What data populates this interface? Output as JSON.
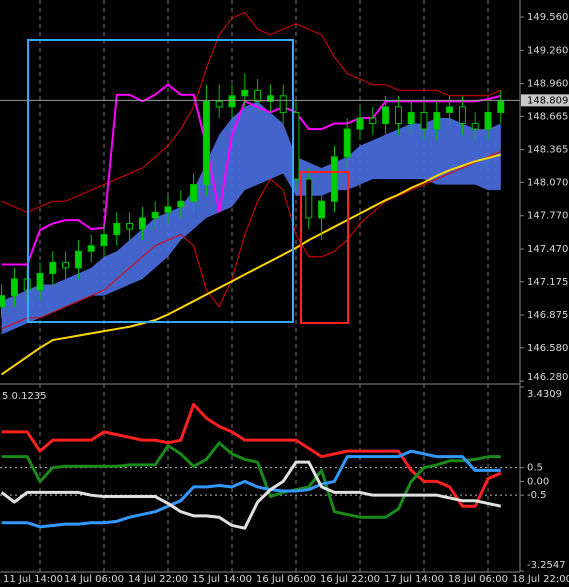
{
  "chart_data": [
    {
      "type": "candlestick",
      "ylim": [
        146.263,
        149.713
      ],
      "yticks": [
        {
          "value": 149.56,
          "label": "149.560"
        },
        {
          "value": 149.26,
          "label": "149.260"
        },
        {
          "value": 148.96,
          "label": "148.960"
        },
        148.665,
        148.365,
        {
          "value": 148.07,
          "label": "148.070"
        },
        {
          "value": 147.77,
          "label": "147.770"
        },
        {
          "value": 147.47,
          "label": "147.470"
        },
        147.175,
        146.875,
        {
          "value": 146.58,
          "label": "146.580"
        },
        {
          "value": 146.28,
          "label": "146.280"
        }
      ],
      "xlim": [
        -0.125,
        40.5
      ],
      "xticks": [
        {
          "value": -2,
          "label": "11 Jul 14:00"
        },
        {
          "value": 3,
          "label": "14 Jul 06:00"
        },
        {
          "value": 8,
          "label": "14 Jul 22:00"
        },
        {
          "value": 13,
          "label": "15 Jul 14:00"
        },
        {
          "value": 18,
          "label": "16 Jul 06:00"
        },
        {
          "value": 23,
          "label": "16 Jul 22:00"
        },
        {
          "value": 28,
          "label": "17 Jul 14:00"
        },
        {
          "value": 33,
          "label": "18 Jul 06:00"
        },
        {
          "value": 38,
          "label": "18 Jul 22:00"
        }
      ],
      "open": [
        146.95,
        147.05,
        147.2,
        147.1,
        147.25,
        147.35,
        147.3,
        147.45,
        147.5,
        147.6,
        147.7,
        147.65,
        147.75,
        147.8,
        147.85,
        147.9,
        148.05,
        148.8,
        148.75,
        148.85,
        148.9,
        148.8,
        148.85,
        148.7,
        148.1,
        147.75,
        147.9,
        148.3,
        148.55,
        148.65,
        148.6,
        148.75,
        148.6,
        148.7,
        148.55,
        148.7,
        148.75,
        148.6,
        148.55,
        148.7
      ],
      "high": [
        147.15,
        147.3,
        147.3,
        147.35,
        147.45,
        147.45,
        147.55,
        147.6,
        147.7,
        147.8,
        147.8,
        147.85,
        147.9,
        147.95,
        148.0,
        148.15,
        148.95,
        148.95,
        148.95,
        149.05,
        149.0,
        148.95,
        148.95,
        148.8,
        148.2,
        147.95,
        148.4,
        148.65,
        148.75,
        148.75,
        148.85,
        148.85,
        148.8,
        148.8,
        148.8,
        148.85,
        148.85,
        148.7,
        148.8,
        148.9
      ],
      "low": [
        146.85,
        146.95,
        147.0,
        147.0,
        147.15,
        147.2,
        147.2,
        147.35,
        147.4,
        147.5,
        147.55,
        147.55,
        147.65,
        147.7,
        147.75,
        147.8,
        147.95,
        148.65,
        148.65,
        148.75,
        148.7,
        148.7,
        148.6,
        148.0,
        147.65,
        147.55,
        147.8,
        148.2,
        148.45,
        148.5,
        148.5,
        148.5,
        148.5,
        148.45,
        148.45,
        148.6,
        148.5,
        148.45,
        148.45,
        148.6
      ],
      "close": [
        147.05,
        147.2,
        147.1,
        147.25,
        147.35,
        147.3,
        147.45,
        147.5,
        147.6,
        147.7,
        147.65,
        147.75,
        147.8,
        147.85,
        147.9,
        148.05,
        148.8,
        148.75,
        148.85,
        148.9,
        148.8,
        148.85,
        148.7,
        148.1,
        147.75,
        147.9,
        148.3,
        148.55,
        148.65,
        148.6,
        148.75,
        148.6,
        148.7,
        148.55,
        148.7,
        148.75,
        148.6,
        148.55,
        148.7,
        148.8
      ],
      "up_color": "#00d000",
      "down_color": "#000000",
      "wick_color": "#00c000",
      "current_price": 148.809,
      "cloud": {
        "color": "#4a6fe0",
        "upper": [
          147.0,
          147.05,
          147.1,
          147.15,
          147.15,
          147.2,
          147.25,
          147.3,
          147.4,
          147.45,
          147.55,
          147.65,
          147.75,
          147.8,
          147.85,
          148.0,
          148.25,
          148.5,
          148.65,
          148.75,
          148.8,
          148.7,
          148.6,
          148.3,
          148.25,
          148.2,
          148.25,
          148.3,
          148.4,
          148.45,
          148.5,
          148.55,
          148.6,
          148.6,
          148.65,
          148.65,
          148.6,
          148.55,
          148.55,
          148.6
        ],
        "lower": [
          146.7,
          146.75,
          146.8,
          146.85,
          146.9,
          146.95,
          147.0,
          147.05,
          147.05,
          147.1,
          147.15,
          147.2,
          147.3,
          147.4,
          147.55,
          147.65,
          147.75,
          147.8,
          147.85,
          148.0,
          148.05,
          148.1,
          148.15,
          147.95,
          147.95,
          147.95,
          148.0,
          148.0,
          148.05,
          148.1,
          148.1,
          148.1,
          148.1,
          148.1,
          148.05,
          148.05,
          148.05,
          148.05,
          148.0,
          148.0
        ]
      },
      "lines": [
        {
          "color": "#e00000",
          "width": 1,
          "values": [
            147.9,
            147.85,
            147.8,
            147.85,
            147.9,
            147.9,
            147.95,
            148.0,
            148.05,
            148.1,
            148.15,
            148.2,
            148.3,
            148.4,
            148.55,
            148.75,
            149.1,
            149.4,
            149.55,
            149.6,
            149.45,
            149.4,
            149.45,
            149.5,
            149.45,
            149.4,
            149.2,
            149.05,
            149.0,
            148.95,
            148.95,
            148.9,
            148.9,
            148.9,
            148.9,
            148.85,
            148.85,
            148.85,
            148.85,
            148.9
          ]
        },
        {
          "color": "#e00000",
          "width": 1,
          "values": [
            146.75,
            146.8,
            146.85,
            146.85,
            146.9,
            146.95,
            147.0,
            147.05,
            147.1,
            147.2,
            147.3,
            147.4,
            147.5,
            147.55,
            147.6,
            147.5,
            147.1,
            146.95,
            147.2,
            147.6,
            147.9,
            148.1,
            148.0,
            147.6,
            147.4,
            147.4,
            147.45,
            147.55,
            147.7,
            147.8,
            147.9,
            147.95,
            148.0,
            148.05,
            148.1,
            148.15,
            148.2,
            148.25,
            148.3,
            148.35
          ]
        },
        {
          "color": "#ffd700",
          "width": 2,
          "values": [
            146.34,
            146.42,
            146.5,
            146.58,
            146.65,
            146.67,
            146.69,
            146.71,
            146.73,
            146.75,
            146.77,
            146.8,
            146.83,
            146.88,
            146.94,
            147.0,
            147.06,
            147.12,
            147.18,
            147.24,
            147.3,
            147.36,
            147.42,
            147.48,
            147.55,
            147.61,
            147.67,
            147.73,
            147.79,
            147.85,
            147.91,
            147.96,
            148.02,
            148.07,
            148.13,
            148.18,
            148.22,
            148.26,
            148.29,
            148.32
          ]
        },
        {
          "color": "#ff00ff",
          "width": 2,
          "values": [
            147.33,
            147.33,
            147.33,
            147.64,
            147.7,
            147.73,
            147.73,
            147.65,
            147.66,
            148.86,
            148.86,
            148.8,
            148.86,
            148.95,
            148.86,
            148.86,
            148.4,
            147.8,
            148.5,
            148.8,
            148.75,
            148.7,
            148.75,
            148.7,
            148.55,
            148.55,
            148.6,
            148.6,
            148.65,
            148.65,
            148.8,
            148.8,
            148.8,
            148.8,
            148.8,
            148.8,
            148.8,
            148.8,
            148.82,
            148.85
          ]
        }
      ]
    },
    {
      "type": "line",
      "title": "5 0.1235",
      "ylim": [
        -3.2547,
        3.4309
      ],
      "yticks": [
        3.4309,
        0.5,
        {
          "value": 0,
          "label": "0.00"
        },
        -0.5,
        -3.2547
      ],
      "grid": true,
      "series": [
        {
          "color": "#ff2020",
          "values": [
            1.8,
            1.8,
            1.8,
            1.1,
            1.5,
            1.5,
            1.5,
            1.5,
            1.8,
            1.7,
            1.6,
            1.5,
            1.5,
            1.4,
            1.5,
            2.8,
            2.3,
            2.0,
            1.8,
            1.5,
            1.5,
            1.5,
            1.5,
            1.5,
            1.2,
            0.9,
            1.0,
            1.1,
            1.1,
            1.1,
            1.1,
            1.1,
            0.4,
            0.0,
            0.0,
            -0.2,
            -0.9,
            -0.9,
            0.1,
            0.3
          ]
        },
        {
          "color": "#1a8a1a",
          "values": [
            0.9,
            0.9,
            0.9,
            0.0,
            0.5,
            0.55,
            0.55,
            0.55,
            0.55,
            0.55,
            0.6,
            0.6,
            0.6,
            1.3,
            1.0,
            0.55,
            0.8,
            1.4,
            1.0,
            0.8,
            0.7,
            -0.55,
            -0.4,
            -0.3,
            -0.2,
            0.4,
            -1.1,
            -1.2,
            -1.3,
            -1.3,
            -1.3,
            -1.0,
            0.0,
            0.5,
            0.6,
            0.75,
            0.75,
            0.8,
            0.9,
            0.9
          ]
        },
        {
          "color": "#3399ff",
          "values": [
            -1.5,
            -1.5,
            -1.5,
            -1.65,
            -1.6,
            -1.55,
            -1.55,
            -1.5,
            -1.5,
            -1.45,
            -1.3,
            -1.2,
            -1.1,
            -0.9,
            -0.7,
            -0.2,
            -0.2,
            -0.15,
            -0.2,
            0.0,
            -0.2,
            -0.3,
            -0.35,
            -0.35,
            -0.3,
            -0.1,
            0.0,
            0.9,
            0.9,
            0.9,
            0.9,
            0.9,
            1.1,
            1.0,
            0.9,
            0.9,
            0.9,
            0.4,
            0.4,
            0.4
          ]
        },
        {
          "color": "#e0e0e0",
          "values": [
            -0.4,
            -0.75,
            -0.4,
            -0.4,
            -0.4,
            -0.4,
            -0.4,
            -0.5,
            -0.55,
            -0.55,
            -0.55,
            -0.55,
            -0.55,
            -0.8,
            -1.1,
            -1.25,
            -1.25,
            -1.3,
            -1.6,
            -1.7,
            -0.75,
            -0.3,
            0.0,
            0.7,
            0.7,
            -0.2,
            -0.4,
            -0.4,
            -0.4,
            -0.5,
            -0.5,
            -0.5,
            -0.5,
            -0.5,
            -0.5,
            -0.6,
            -0.7,
            -0.7,
            -0.8,
            -0.9
          ]
        }
      ]
    }
  ]
}
